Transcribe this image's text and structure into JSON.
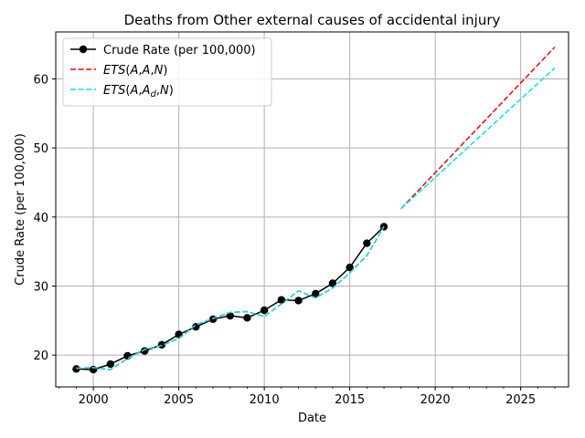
{
  "chart_data": {
    "type": "line",
    "title": "Deaths from Other external causes of accidental injury",
    "xlabel": "Date",
    "ylabel": "Crude Rate (per 100,000)",
    "xlim": [
      1997.8,
      2027.8
    ],
    "ylim": [
      15.4,
      66.8
    ],
    "xticks": [
      2000,
      2005,
      2010,
      2015,
      2020,
      2025
    ],
    "yticks": [
      20,
      30,
      40,
      50,
      60
    ],
    "grid": true,
    "legend_position": "top-left",
    "series": [
      {
        "name": "Crude Rate (per 100,000)",
        "color": "#000000",
        "style": "solid-marker",
        "x": [
          1999,
          2000,
          2001,
          2002,
          2003,
          2004,
          2005,
          2006,
          2007,
          2008,
          2009,
          2010,
          2011,
          2012,
          2013,
          2014,
          2015,
          2016,
          2017
        ],
        "y": [
          18.0,
          17.9,
          18.7,
          19.9,
          20.6,
          21.5,
          23.0,
          24.1,
          25.2,
          25.7,
          25.4,
          26.5,
          28.0,
          27.9,
          28.9,
          30.4,
          32.7,
          36.2,
          38.6
        ]
      },
      {
        "name": "ETS(A,A,N)",
        "name_parts": [
          "ETS",
          "(",
          "A",
          ",",
          "A",
          ",",
          "N",
          ")"
        ],
        "color": "#ff0000",
        "style": "dashed",
        "x": [
          1999,
          2000,
          2001,
          2002,
          2003,
          2004,
          2005,
          2006,
          2007,
          2008,
          2009,
          2010,
          2011,
          2012,
          2013,
          2014,
          2015,
          2016,
          2017,
          2018,
          2027
        ],
        "y": [
          18.1,
          18.2,
          17.9,
          19.5,
          20.8,
          21.4,
          22.4,
          24.4,
          25.3,
          26.2,
          26.3,
          25.6,
          27.4,
          29.3,
          28.3,
          29.7,
          31.9,
          34.4,
          38.6,
          41.2,
          64.6
        ]
      },
      {
        "name": "ETS(A,Ad,N)",
        "name_parts": [
          "ETS",
          "(",
          "A",
          ",",
          "A",
          "d",
          ",",
          "N",
          ")"
        ],
        "color": "#00e5ee",
        "style": "dashed",
        "x": [
          1999,
          2000,
          2001,
          2002,
          2003,
          2004,
          2005,
          2006,
          2007,
          2008,
          2009,
          2010,
          2011,
          2012,
          2013,
          2014,
          2015,
          2016,
          2017,
          2018,
          2027
        ],
        "y": [
          18.1,
          18.2,
          17.9,
          19.5,
          20.8,
          21.4,
          22.4,
          24.4,
          25.3,
          26.2,
          26.3,
          25.6,
          27.4,
          29.3,
          28.3,
          29.7,
          31.9,
          34.4,
          38.6,
          41.2,
          61.6
        ]
      }
    ]
  }
}
